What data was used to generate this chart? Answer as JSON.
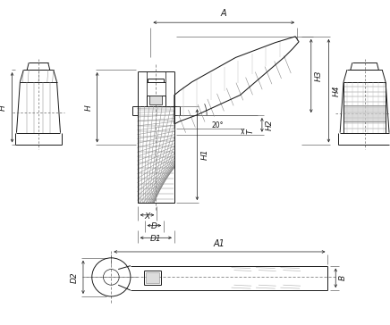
{
  "bg_color": "#ffffff",
  "lc": "#1a1a1a",
  "thin": "#555555",
  "gray": "#888888",
  "lgray": "#bbbbbb",
  "figsize": [
    4.36,
    3.64
  ],
  "dpi": 100,
  "labels": {
    "A": "A",
    "A1": "A1",
    "H": "H",
    "H1": "H1",
    "H2": "H2",
    "H3": "H3",
    "H4": "H4",
    "T": "T",
    "X": "X",
    "D": "D",
    "D1": "D1",
    "D2": "D2",
    "B": "B",
    "angle": "20°"
  }
}
